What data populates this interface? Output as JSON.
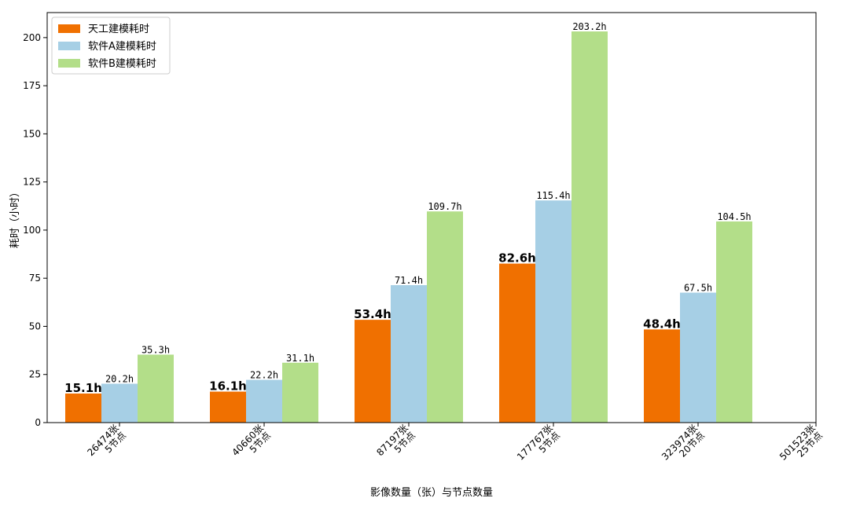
{
  "chart_data": {
    "type": "bar",
    "xlabel": "影像数量（张）与节点数量",
    "ylabel": "耗时（小时）",
    "ylim": [
      0,
      213
    ],
    "yticks": [
      0,
      25,
      50,
      75,
      100,
      125,
      150,
      175,
      200
    ],
    "categories": [
      [
        "26474张",
        "5节点"
      ],
      [
        "40660张",
        "5节点"
      ],
      [
        "87197张",
        "5节点"
      ],
      [
        "177767张",
        "5节点"
      ],
      [
        "323974张",
        "20节点"
      ],
      [
        "501523张",
        "25节点"
      ]
    ],
    "series": [
      {
        "name": "天工建模耗时",
        "color": "#f07000",
        "values": [
          15.1,
          16.1,
          53.4,
          82.6,
          48.4,
          null
        ],
        "labels": [
          "15.1h",
          "16.1h",
          "53.4h",
          "82.6h",
          "48.4h",
          null
        ]
      },
      {
        "name": "软件A建模耗时",
        "color": "#a6cfe5",
        "values": [
          20.2,
          22.2,
          71.4,
          115.4,
          67.5,
          null
        ],
        "labels": [
          "20.2h",
          "22.2h",
          "71.4h",
          "115.4h",
          "67.5h",
          null
        ]
      },
      {
        "name": "软件B建模耗时",
        "color": "#b3de89",
        "values": [
          35.3,
          31.1,
          109.7,
          203.2,
          104.5,
          null
        ],
        "labels": [
          "35.3h",
          "31.1h",
          "109.7h",
          "203.2h",
          "104.5h",
          null
        ]
      }
    ],
    "legend_position": "top-left",
    "grid": false
  }
}
